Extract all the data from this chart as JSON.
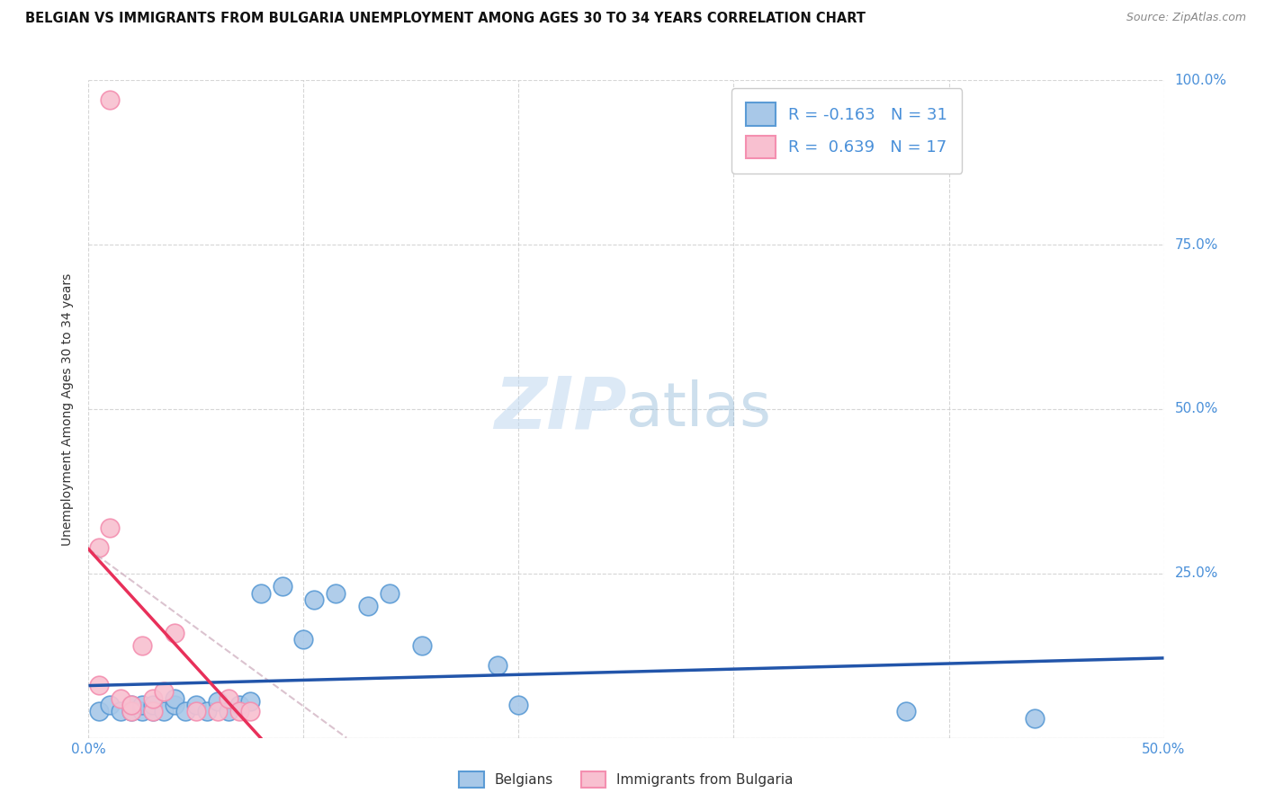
{
  "title": "BELGIAN VS IMMIGRANTS FROM BULGARIA UNEMPLOYMENT AMONG AGES 30 TO 34 YEARS CORRELATION CHART",
  "source": "Source: ZipAtlas.com",
  "ylabel": "Unemployment Among Ages 30 to 34 years",
  "xlim": [
    0.0,
    0.5
  ],
  "ylim": [
    0.0,
    1.0
  ],
  "xticks": [
    0.0,
    0.1,
    0.2,
    0.3,
    0.4,
    0.5
  ],
  "xticklabels": [
    "0.0%",
    "",
    "",
    "",
    "",
    "50.0%"
  ],
  "yticks": [
    0.0,
    0.25,
    0.5,
    0.75,
    1.0
  ],
  "yticklabels_right": [
    "",
    "25.0%",
    "50.0%",
    "75.0%",
    "100.0%"
  ],
  "watermark_zip": "ZIP",
  "watermark_atlas": "atlas",
  "legend_items": [
    {
      "label": "Belgians",
      "R": -0.163,
      "N": 31
    },
    {
      "label": "Immigrants from Bulgaria",
      "R": 0.639,
      "N": 17
    }
  ],
  "belgians_x": [
    0.005,
    0.01,
    0.015,
    0.02,
    0.02,
    0.025,
    0.025,
    0.03,
    0.03,
    0.035,
    0.04,
    0.04,
    0.045,
    0.05,
    0.055,
    0.06,
    0.065,
    0.07,
    0.075,
    0.08,
    0.09,
    0.1,
    0.105,
    0.115,
    0.13,
    0.14,
    0.155,
    0.19,
    0.2,
    0.38,
    0.44
  ],
  "belgians_y": [
    0.04,
    0.05,
    0.04,
    0.04,
    0.05,
    0.04,
    0.05,
    0.04,
    0.05,
    0.04,
    0.05,
    0.06,
    0.04,
    0.05,
    0.04,
    0.055,
    0.04,
    0.05,
    0.055,
    0.22,
    0.23,
    0.15,
    0.21,
    0.22,
    0.2,
    0.22,
    0.14,
    0.11,
    0.05,
    0.04,
    0.03
  ],
  "bulgaria_x": [
    0.005,
    0.005,
    0.01,
    0.01,
    0.015,
    0.02,
    0.02,
    0.025,
    0.03,
    0.03,
    0.035,
    0.04,
    0.05,
    0.06,
    0.065,
    0.07,
    0.075
  ],
  "bulgaria_y": [
    0.08,
    0.29,
    0.32,
    0.97,
    0.06,
    0.04,
    0.05,
    0.14,
    0.04,
    0.06,
    0.07,
    0.16,
    0.04,
    0.04,
    0.06,
    0.04,
    0.04
  ],
  "blue_scatter_face": "#a8c8e8",
  "blue_scatter_edge": "#5b9bd5",
  "pink_scatter_face": "#f8c0d0",
  "pink_scatter_edge": "#f48fb0",
  "trend_blue_color": "#2255aa",
  "trend_pink_color": "#e8305a",
  "trend_pink_dash_color": "#ccaabb",
  "grid_color": "#cccccc",
  "title_color": "#111111",
  "tick_label_color": "#4a90d9",
  "ylabel_color": "#333333",
  "background_color": "#ffffff",
  "legend_box_color": "#4a90d9",
  "bottom_label_color": "#333333"
}
